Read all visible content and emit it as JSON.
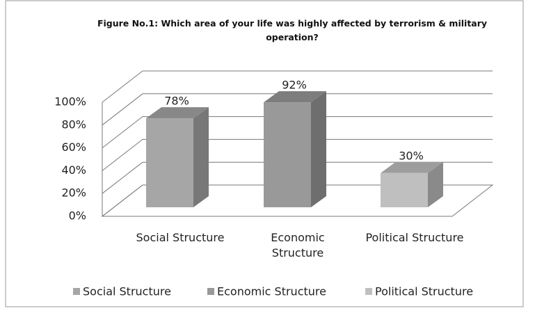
{
  "chart_data": {
    "type": "bar3d",
    "title": "Figure No.1: Which area of your life was highly affected by terrorism & military operation?",
    "categories": [
      "Social Structure",
      "Economic Structure",
      "Political Structure"
    ],
    "values": [
      78,
      92,
      30
    ],
    "value_labels": [
      "78%",
      "92%",
      "30%"
    ],
    "colors": [
      "#a6a6a6",
      "#999999",
      "#bfbfbf"
    ],
    "ylim": [
      0,
      100
    ],
    "yticks": [
      {
        "value": 0,
        "label": "0%"
      },
      {
        "value": 20,
        "label": "20%"
      },
      {
        "value": 40,
        "label": "40%"
      },
      {
        "value": 60,
        "label": "60%"
      },
      {
        "value": 80,
        "label": "80%"
      },
      {
        "value": 100,
        "label": "100%"
      }
    ],
    "grid": true,
    "legend": "bottom"
  }
}
